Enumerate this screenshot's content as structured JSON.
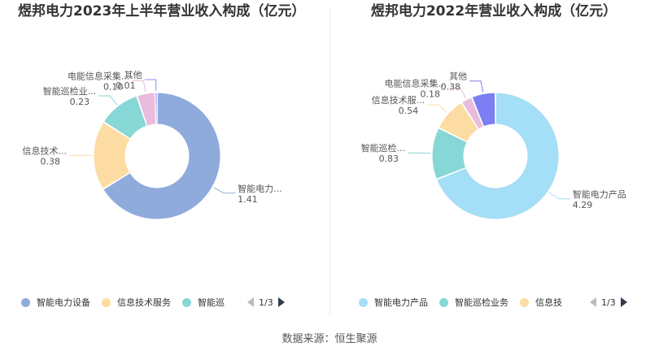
{
  "chart_data": [
    {
      "type": "pie",
      "title": "煜邦电力2023年上半年营业收入构成（亿元）",
      "slices": [
        {
          "label": "智能电力设备",
          "display_label": "智能电力...",
          "value": 1.41,
          "value_text": "1.41",
          "color": "#8fabdb"
        },
        {
          "label": "信息技术服务",
          "display_label": "信息技术...",
          "value": 0.38,
          "value_text": "0.38",
          "color": "#fcdca2"
        },
        {
          "label": "智能巡检业务",
          "display_label": "智能巡检业...",
          "value": 0.23,
          "value_text": "0.23",
          "color": "#86d7d6"
        },
        {
          "label": "电能信息采集",
          "display_label": "电能信息采集...",
          "value": 0.1,
          "value_text": "0.10",
          "color": "#e9bcdd"
        },
        {
          "label": "其他",
          "display_label": "其他",
          "value": 0.01,
          "value_text": "0.01",
          "color": "#8c8ff7"
        }
      ],
      "legend": {
        "entries": [
          "智能电力设备",
          "信息技术服务",
          "智能巡"
        ],
        "page": "1/3"
      }
    },
    {
      "type": "pie",
      "title": "煜邦电力2022年营业收入构成（亿元）",
      "slices": [
        {
          "label": "智能电力产品",
          "display_label": "智能电力产品",
          "value": 4.29,
          "value_text": "4.29",
          "color": "#a4def7"
        },
        {
          "label": "智能巡检业务",
          "display_label": "智能巡检...",
          "value": 0.83,
          "value_text": "0.83",
          "color": "#86d7d6"
        },
        {
          "label": "信息技术服务",
          "display_label": "信息技术服...",
          "value": 0.54,
          "value_text": "0.54",
          "color": "#fcdca2"
        },
        {
          "label": "电能信息采集",
          "display_label": "电能信息采集...",
          "value": 0.18,
          "value_text": "0.18",
          "color": "#e9bcdd"
        },
        {
          "label": "其他",
          "display_label": "其他",
          "value": 0.38,
          "value_text": "0.38",
          "color": "#7b7ff3"
        }
      ],
      "legend": {
        "entries": [
          "智能电力产品",
          "智能巡检业务",
          "信息技"
        ],
        "page": "1/3"
      }
    }
  ],
  "source": "数据来源：恒生聚源"
}
